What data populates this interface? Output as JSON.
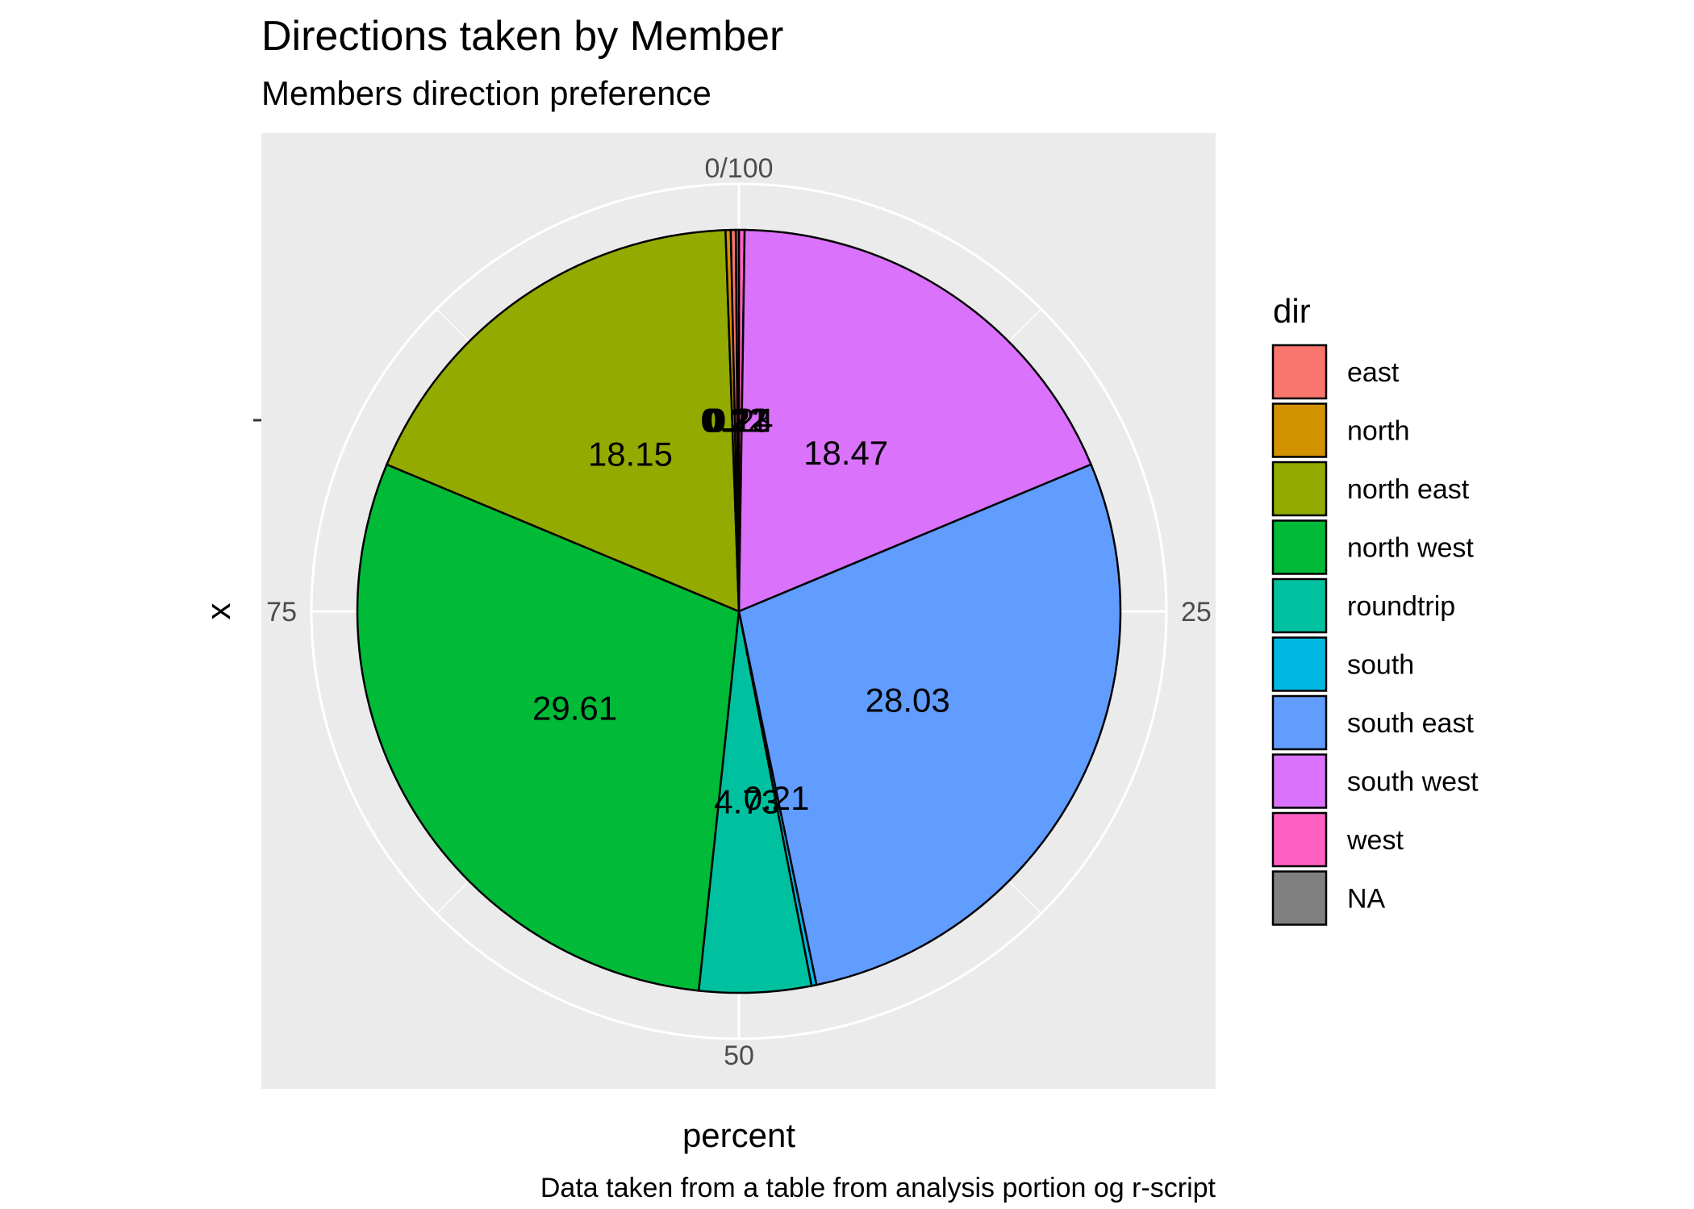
{
  "chart_data": {
    "type": "pie",
    "title": "Directions taken by Member",
    "subtitle": "Members direction preference",
    "xlabel": "percent",
    "ylabel": "x",
    "caption": "Data taken from a table from analysis portion og r-script",
    "theta_ticks": [
      {
        "value": 0,
        "label": "0/100"
      },
      {
        "value": 25,
        "label": "25"
      },
      {
        "value": 50,
        "label": "50"
      },
      {
        "value": 75,
        "label": "75"
      }
    ],
    "grid": true,
    "legend": {
      "title": "dir",
      "placement": "right"
    },
    "slices": [
      {
        "name": "west",
        "value": 0.24,
        "label": "0.24",
        "color": "#FF61C3"
      },
      {
        "name": "south west",
        "value": 18.47,
        "label": "18.47",
        "color": "#DB72FB"
      },
      {
        "name": "south east",
        "value": 28.03,
        "label": "28.03",
        "color": "#619CFF"
      },
      {
        "name": "south",
        "value": 0.21,
        "label": "0.21",
        "color": "#00B9E3"
      },
      {
        "name": "roundtrip",
        "value": 4.73,
        "label": "4.73",
        "color": "#00C19F"
      },
      {
        "name": "north west",
        "value": 29.61,
        "label": "29.61",
        "color": "#00BA38"
      },
      {
        "name": "north east",
        "value": 18.15,
        "label": "18.15",
        "color": "#93AA00"
      },
      {
        "name": "north",
        "value": 0.22,
        "label": "0.22",
        "color": "#D39200"
      },
      {
        "name": "east",
        "value": 0.21,
        "label": "0.21",
        "color": "#F8766D"
      },
      {
        "name": "NA",
        "value": 0.13,
        "label": "0.13",
        "color": "#808080"
      }
    ],
    "legend_order": [
      "east",
      "north",
      "north east",
      "north west",
      "roundtrip",
      "south",
      "south east",
      "south west",
      "west",
      "NA"
    ]
  }
}
